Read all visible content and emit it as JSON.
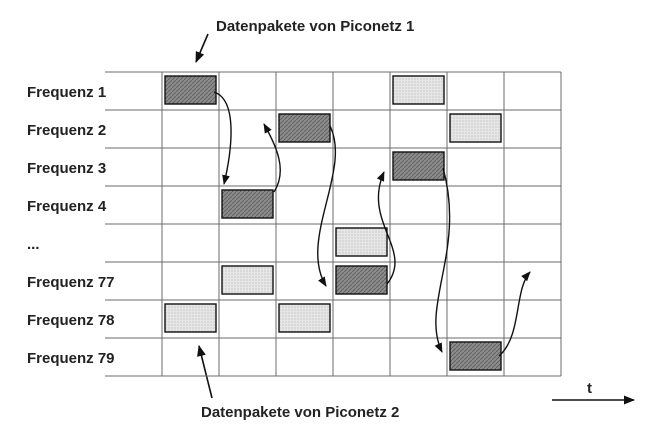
{
  "caption_top": "Datenpakete von Piconetz 1",
  "caption_bottom": "Datenpakete von Piconetz 2",
  "time_axis_label": "t",
  "rows": [
    {
      "label": "Frequenz 1"
    },
    {
      "label": "Frequenz 2"
    },
    {
      "label": "Frequenz 3"
    },
    {
      "label": "Frequenz 4"
    },
    {
      "label": "..."
    },
    {
      "label": "Frequenz 77"
    },
    {
      "label": "Frequenz 78"
    },
    {
      "label": "Frequenz 79"
    }
  ],
  "slots": 7,
  "piconet1_packets": [
    {
      "slot": 0,
      "row": 0
    },
    {
      "slot": 1,
      "row": 3
    },
    {
      "slot": 2,
      "row": 1
    },
    {
      "slot": 3,
      "row": 5
    },
    {
      "slot": 4,
      "row": 2
    },
    {
      "slot": 5,
      "row": 7
    }
  ],
  "piconet2_packets": [
    {
      "slot": 0,
      "row": 6
    },
    {
      "slot": 1,
      "row": 5
    },
    {
      "slot": 2,
      "row": 6
    },
    {
      "slot": 3,
      "row": 4
    },
    {
      "slot": 4,
      "row": 0
    },
    {
      "slot": 5,
      "row": 1
    }
  ],
  "colors": {
    "piconet1_fill": "#8c8c8c",
    "piconet2_fill": "#e2e2e2",
    "grid": "#6b6b6b"
  }
}
